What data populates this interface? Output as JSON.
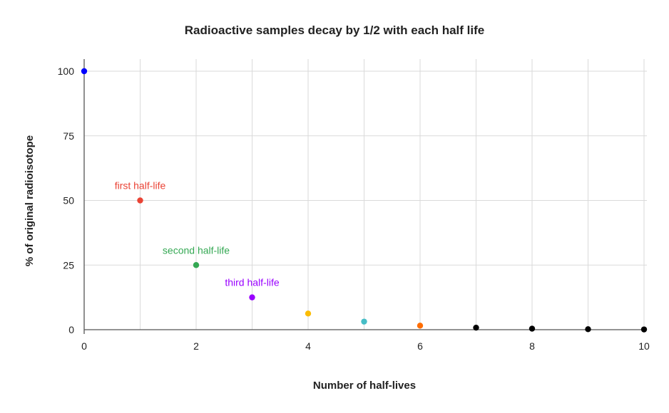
{
  "chart_data": {
    "type": "scatter",
    "title": "Radioactive samples decay by 1/2 with each half life",
    "xlabel": "Number of half-lives",
    "ylabel": "% of original radioisotope",
    "xlim": [
      0,
      10
    ],
    "ylim": [
      0,
      100
    ],
    "x_ticks": [
      "0",
      "2",
      "4",
      "6",
      "8",
      "10"
    ],
    "y_ticks": [
      "0",
      "25",
      "50",
      "75",
      "100"
    ],
    "grid": true,
    "legend": "none",
    "points": [
      {
        "x": 0,
        "y": 100,
        "color": "#0000ff"
      },
      {
        "x": 1,
        "y": 50,
        "color": "#ea4335"
      },
      {
        "x": 2,
        "y": 25,
        "color": "#34a853"
      },
      {
        "x": 3,
        "y": 12.5,
        "color": "#9900ff"
      },
      {
        "x": 4,
        "y": 6.25,
        "color": "#fbbc04"
      },
      {
        "x": 5,
        "y": 3.125,
        "color": "#46bdc6"
      },
      {
        "x": 6,
        "y": 1.5625,
        "color": "#ff6d01"
      },
      {
        "x": 7,
        "y": 0.78125,
        "color": "#000000"
      },
      {
        "x": 8,
        "y": 0.390625,
        "color": "#000000"
      },
      {
        "x": 9,
        "y": 0.1953125,
        "color": "#000000"
      },
      {
        "x": 10,
        "y": 0.09765625,
        "color": "#000000"
      }
    ],
    "annotations": [
      {
        "text": "first half-life",
        "x": 1,
        "y": 50,
        "color": "#ea4335"
      },
      {
        "text": "second half-life",
        "x": 2,
        "y": 25,
        "color": "#34a853"
      },
      {
        "text": "third half-life",
        "x": 3,
        "y": 12.5,
        "color": "#9900ff"
      }
    ]
  }
}
